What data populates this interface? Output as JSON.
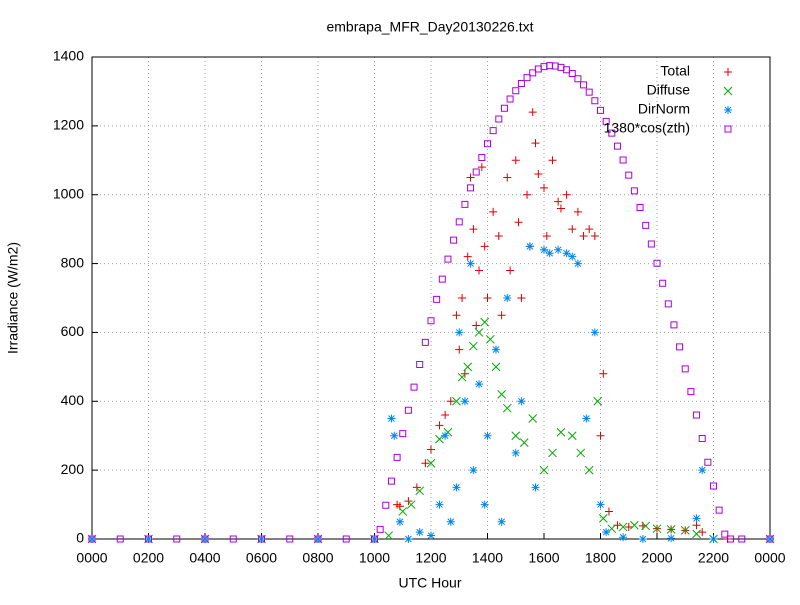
{
  "chart_data": {
    "type": "scatter",
    "title": "embrapa_MFR_Day20130226.txt",
    "x_label": "UTC Hour",
    "y_label": "Irradiance (W/m2)",
    "xlim": [
      0,
      24
    ],
    "ylim": [
      0,
      1400
    ],
    "xticks": [
      {
        "value": 0,
        "label": "0000"
      },
      {
        "value": 2,
        "label": "0200"
      },
      {
        "value": 4,
        "label": "0400"
      },
      {
        "value": 6,
        "label": "0600"
      },
      {
        "value": 8,
        "label": "0800"
      },
      {
        "value": 10,
        "label": "1000"
      },
      {
        "value": 12,
        "label": "1200"
      },
      {
        "value": 14,
        "label": "1400"
      },
      {
        "value": 16,
        "label": "1600"
      },
      {
        "value": 18,
        "label": "1800"
      },
      {
        "value": 20,
        "label": "2000"
      },
      {
        "value": 22,
        "label": "2200"
      },
      {
        "value": 24,
        "label": "0000"
      }
    ],
    "yticks": [
      0,
      200,
      400,
      600,
      800,
      1000,
      1200,
      1400
    ],
    "grid": true,
    "legend": "top-right",
    "series": [
      {
        "name": "Total",
        "color": "#dd0000",
        "marker": "plus",
        "x": [
          0,
          2,
          4,
          6,
          8,
          10,
          10.8,
          10.9,
          11.2,
          11.5,
          11.8,
          12.0,
          12.3,
          12.5,
          12.7,
          12.9,
          13.0,
          13.1,
          13.2,
          13.3,
          13.4,
          13.5,
          13.6,
          13.7,
          13.8,
          13.9,
          14.0,
          14.2,
          14.4,
          14.5,
          14.7,
          14.8,
          15.0,
          15.1,
          15.2,
          15.4,
          15.5,
          15.6,
          15.7,
          15.8,
          16.0,
          16.1,
          16.3,
          16.5,
          16.6,
          16.8,
          17.0,
          17.2,
          17.4,
          17.6,
          17.8,
          18.0,
          18.1,
          18.3,
          18.6,
          19.0,
          19.5,
          20.0,
          20.5,
          21.0,
          21.4,
          21.6,
          22.5,
          24
        ],
        "values": [
          0,
          0,
          0,
          0,
          0,
          0,
          100,
          95,
          110,
          150,
          220,
          260,
          330,
          360,
          400,
          650,
          550,
          700,
          480,
          820,
          1050,
          900,
          620,
          780,
          1080,
          850,
          700,
          950,
          880,
          650,
          1050,
          780,
          1100,
          920,
          700,
          1000,
          850,
          1240,
          1150,
          1060,
          1020,
          880,
          1100,
          980,
          960,
          1000,
          900,
          950,
          880,
          900,
          880,
          300,
          480,
          80,
          40,
          35,
          38,
          30,
          28,
          25,
          40,
          20,
          0,
          0
        ]
      },
      {
        "name": "Diffuse",
        "color": "#00aa00",
        "marker": "cross",
        "x": [
          0,
          2,
          4,
          6,
          8,
          10,
          10.5,
          11,
          11.3,
          11.6,
          12,
          12.3,
          12.6,
          12.9,
          13.1,
          13.3,
          13.5,
          13.7,
          13.9,
          14.1,
          14.3,
          14.5,
          14.7,
          15.0,
          15.3,
          15.6,
          16,
          16.3,
          16.6,
          17,
          17.3,
          17.6,
          17.9,
          18.1,
          18.4,
          18.8,
          19.2,
          19.6,
          20,
          20.5,
          21,
          21.4,
          22,
          24
        ],
        "values": [
          0,
          0,
          0,
          0,
          0,
          0,
          10,
          80,
          100,
          140,
          220,
          290,
          310,
          400,
          470,
          500,
          560,
          600,
          630,
          580,
          500,
          420,
          380,
          300,
          280,
          350,
          200,
          250,
          310,
          300,
          250,
          200,
          400,
          60,
          30,
          35,
          40,
          38,
          30,
          28,
          25,
          15,
          0,
          0
        ]
      },
      {
        "name": "DirNorm",
        "color": "#0088ee",
        "marker": "star",
        "x": [
          0,
          2,
          4,
          6,
          8,
          10,
          10.6,
          10.7,
          10.9,
          11.2,
          11.6,
          12,
          12.3,
          12.5,
          12.7,
          12.9,
          13.0,
          13.2,
          13.4,
          13.5,
          13.7,
          13.9,
          14.0,
          14.3,
          14.5,
          14.7,
          15.0,
          15.2,
          15.5,
          15.7,
          16.0,
          16.2,
          16.5,
          16.8,
          17.0,
          17.2,
          17.5,
          17.8,
          18.0,
          18.2,
          18.8,
          19.5,
          20.5,
          21.4,
          21.6,
          22,
          24
        ],
        "values": [
          0,
          0,
          0,
          0,
          0,
          0,
          350,
          300,
          50,
          0,
          20,
          10,
          100,
          300,
          50,
          150,
          600,
          400,
          800,
          200,
          450,
          100,
          300,
          550,
          50,
          700,
          250,
          400,
          850,
          150,
          840,
          830,
          840,
          830,
          820,
          800,
          350,
          600,
          100,
          20,
          5,
          0,
          2,
          60,
          200,
          0,
          0
        ]
      },
      {
        "name": "1380*cos(zth)",
        "color": "#aa00dd",
        "marker": "square",
        "x": [
          0,
          1,
          2,
          3,
          4,
          5,
          6,
          7,
          8,
          9,
          10,
          10.2,
          10.4,
          10.6,
          10.8,
          11.0,
          11.2,
          11.4,
          11.6,
          11.8,
          12.0,
          12.2,
          12.4,
          12.6,
          12.8,
          13.0,
          13.2,
          13.4,
          13.6,
          13.8,
          14.0,
          14.2,
          14.4,
          14.6,
          14.8,
          15.0,
          15.2,
          15.4,
          15.6,
          15.8,
          16.0,
          16.2,
          16.4,
          16.6,
          16.8,
          17.0,
          17.2,
          17.4,
          17.6,
          17.8,
          18.0,
          18.2,
          18.4,
          18.6,
          18.8,
          19.0,
          19.2,
          19.4,
          19.6,
          19.8,
          20.0,
          20.2,
          20.4,
          20.6,
          20.8,
          21.0,
          21.2,
          21.4,
          21.6,
          21.8,
          22.0,
          22.2,
          22.4,
          22.6,
          23,
          24
        ],
        "values": [
          0,
          0,
          0,
          0,
          0,
          0,
          0,
          0,
          0,
          0,
          0,
          28,
          98,
          168,
          237,
          306,
          374,
          441,
          507,
          571,
          634,
          696,
          755,
          813,
          868,
          921,
          972,
          1020,
          1066,
          1108,
          1148,
          1186,
          1220,
          1251,
          1278,
          1302,
          1323,
          1340,
          1354,
          1365,
          1372,
          1375,
          1374,
          1370,
          1363,
          1352,
          1337,
          1319,
          1298,
          1273,
          1245,
          1213,
          1179,
          1141,
          1101,
          1057,
          1011,
          963,
          911,
          857,
          801,
          743,
          683,
          622,
          558,
          494,
          428,
          360,
          292,
          223,
          154,
          84,
          14,
          0,
          0,
          0
        ]
      }
    ]
  }
}
